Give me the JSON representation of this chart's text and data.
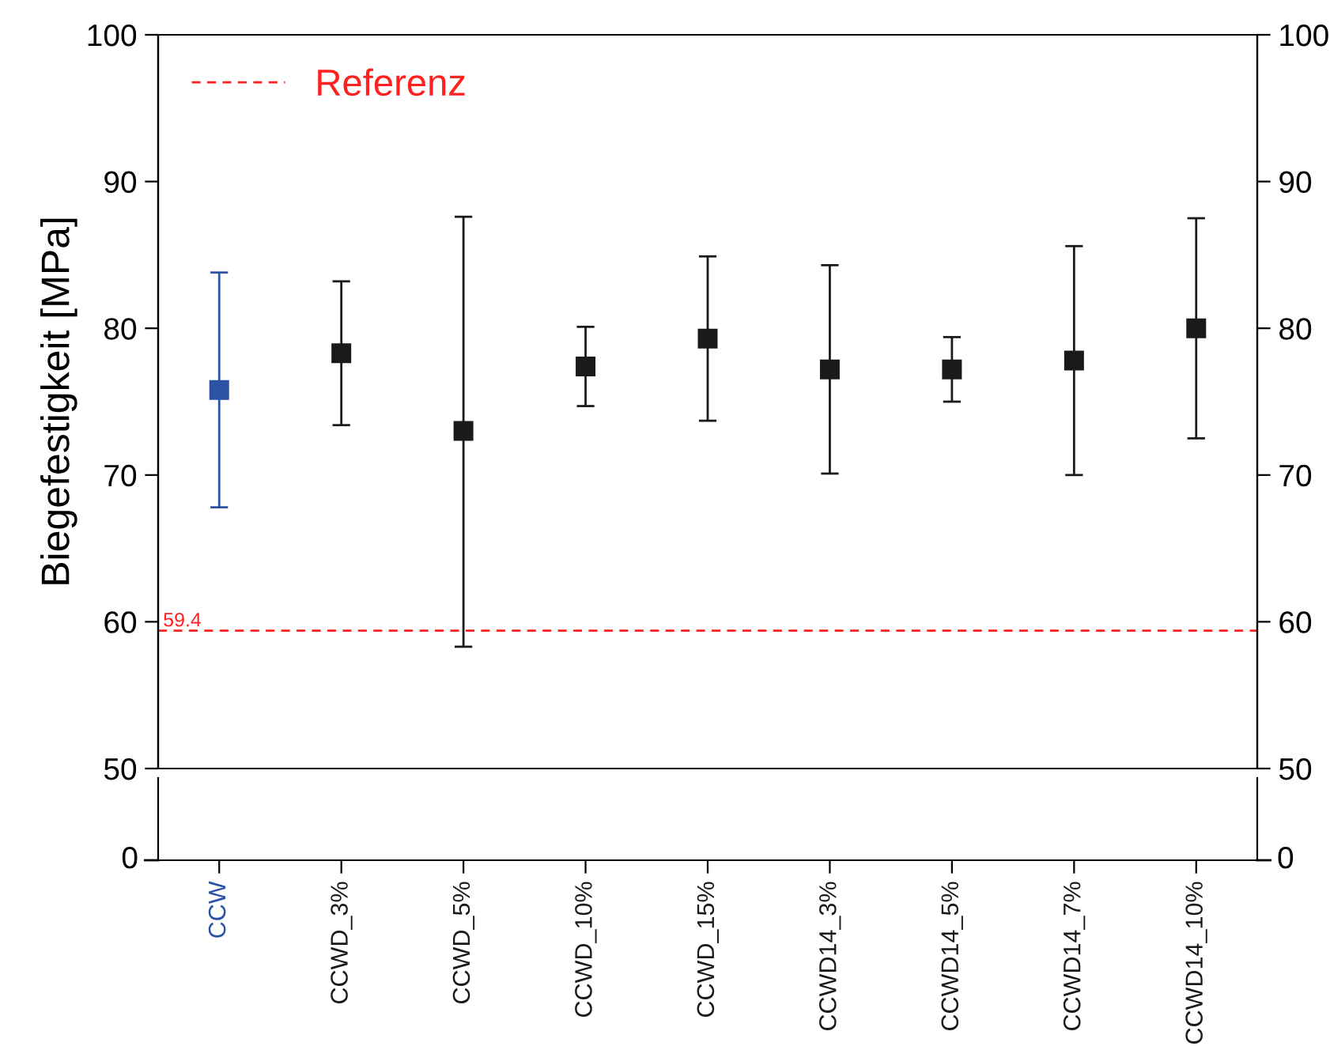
{
  "chart_data": {
    "type": "scatter",
    "ylabel": "Biegefestigkeit [MPa]",
    "categories": [
      "CCW",
      "CCWD_3%",
      "CCWD_5%",
      "CCWD_10%",
      "CCWD_15%",
      "CCWD14_3%",
      "CCWD14_5%",
      "CCWD14_7%",
      "CCWD14_10%"
    ],
    "series": [
      {
        "values": [
          75.8,
          78.3,
          73.0,
          77.4,
          79.3,
          77.2,
          77.2,
          77.8,
          80.0
        ],
        "colors": [
          "#2b52a5",
          "#1a1a1a",
          "#1a1a1a",
          "#1a1a1a",
          "#1a1a1a",
          "#1a1a1a",
          "#1a1a1a",
          "#1a1a1a",
          "#1a1a1a"
        ],
        "errors": [
          [
            67.8,
            83.8
          ],
          [
            73.4,
            83.2
          ],
          [
            58.3,
            87.6
          ],
          [
            74.7,
            80.1
          ],
          [
            73.7,
            84.9
          ],
          [
            70.1,
            84.3
          ],
          [
            75.0,
            79.4
          ],
          [
            70.0,
            85.6
          ],
          [
            72.5,
            87.5
          ]
        ]
      }
    ],
    "marker": "square",
    "ylim": [
      50,
      100
    ],
    "yticks": [
      50,
      60,
      70,
      80,
      90,
      100
    ],
    "y2lim": [
      50,
      100
    ],
    "y2ticks": [
      50,
      60,
      70,
      80,
      90,
      100
    ],
    "ref_lines": [
      {
        "axis": "y",
        "value": 59.4,
        "label": "Referenz",
        "color": "#ff2020",
        "line_style": "dashed"
      }
    ],
    "annotations": [
      {
        "text": "59.4",
        "y": 59.4
      },
      "0",
      "0"
    ],
    "legend": "top left",
    "grid": false
  }
}
